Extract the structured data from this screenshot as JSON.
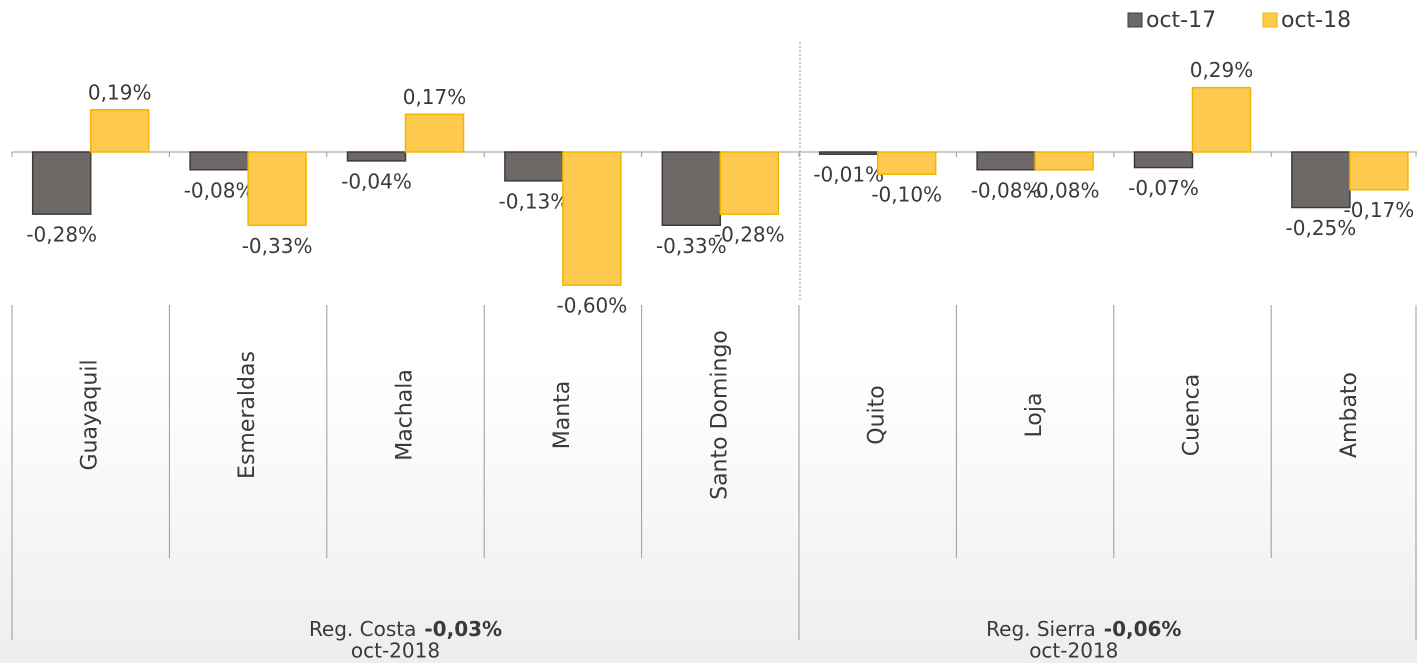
{
  "chart_data": {
    "type": "bar",
    "categories": [
      "Guayaquil",
      "Esmeraldas",
      "Machala",
      "Manta",
      "Santo Domingo",
      "Quito",
      "Loja",
      "Cuenca",
      "Ambato"
    ],
    "series": [
      {
        "name": "oct-17",
        "color": "#6e6967",
        "values": [
          -0.28,
          -0.08,
          -0.04,
          -0.13,
          -0.33,
          -0.01,
          -0.08,
          -0.07,
          -0.25
        ],
        "value_labels": [
          "-0,28%",
          "-0,08%",
          "-0,04%",
          "-0,13%",
          "-0,33%",
          "-0,01%",
          "-0,08%",
          "-0,07%",
          "-0,25%"
        ]
      },
      {
        "name": "oct-18",
        "color": "#fdc94f",
        "values": [
          0.19,
          -0.33,
          0.17,
          -0.6,
          -0.28,
          -0.1,
          -0.08,
          0.29,
          -0.17
        ],
        "value_labels": [
          "0,19%",
          "-0,33%",
          "0,17%",
          "-0,60%",
          "-0,28%",
          "-0,10%",
          "-0,08%",
          "0,29%",
          "-0,17%"
        ]
      }
    ],
    "groups": [
      {
        "name": "Reg. Costa",
        "value": -0.03,
        "value_label": "-0,03%",
        "date": "oct-2018"
      },
      {
        "name": "Reg. Sierra",
        "value": -0.06,
        "value_label": "-0,06%",
        "date": "oct-2018"
      }
    ],
    "legend": "top-right"
  }
}
